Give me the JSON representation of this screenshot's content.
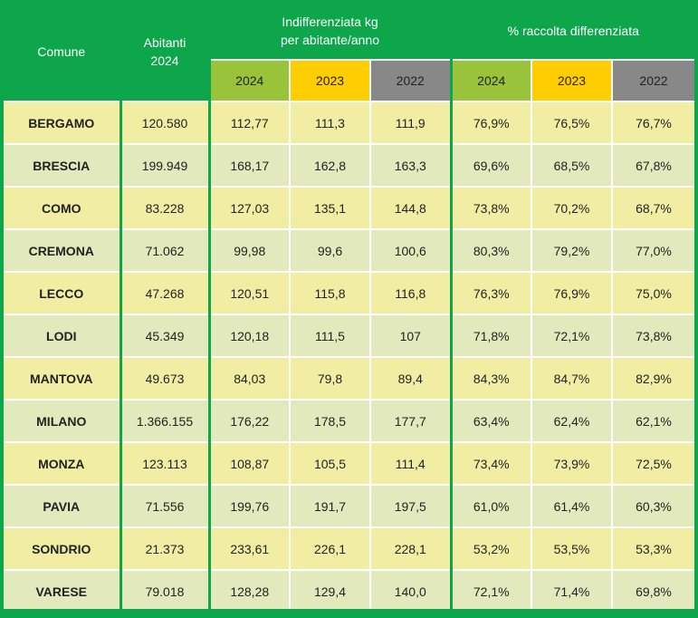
{
  "chart_data": {
    "type": "table",
    "headers": {
      "comune": "Comune",
      "abitanti": "Abitanti 2024",
      "indifferenziata_line1": "Indifferenziata kg",
      "indifferenziata_line2": "per abitante/anno",
      "raccolta": "% raccolta differenziata",
      "years": [
        "2024",
        "2023",
        "2022"
      ]
    },
    "colors": {
      "frame": "#0ea64b",
      "y2024": "#98c33b",
      "y2023": "#ffcd00",
      "y2022": "#888888",
      "row_odd": "#f1eea4",
      "row_even": "#e2e9bc"
    },
    "rows": [
      {
        "comune": "BERGAMO",
        "abitanti": "120.580",
        "ind2024": "112,77",
        "ind2023": "111,3",
        "ind2022": "111,9",
        "rd2024": "76,9%",
        "rd2023": "76,5%",
        "rd2022": "76,7%"
      },
      {
        "comune": "BRESCIA",
        "abitanti": "199.949",
        "ind2024": "168,17",
        "ind2023": "162,8",
        "ind2022": "163,3",
        "rd2024": "69,6%",
        "rd2023": "68,5%",
        "rd2022": "67,8%"
      },
      {
        "comune": "COMO",
        "abitanti": "83.228",
        "ind2024": "127,03",
        "ind2023": "135,1",
        "ind2022": "144,8",
        "rd2024": "73,8%",
        "rd2023": "70,2%",
        "rd2022": "68,7%"
      },
      {
        "comune": "CREMONA",
        "abitanti": "71.062",
        "ind2024": "99,98",
        "ind2023": "99,6",
        "ind2022": "100,6",
        "rd2024": "80,3%",
        "rd2023": "79,2%",
        "rd2022": "77,0%"
      },
      {
        "comune": "LECCO",
        "abitanti": "47.268",
        "ind2024": "120,51",
        "ind2023": "115,8",
        "ind2022": "116,8",
        "rd2024": "76,3%",
        "rd2023": "76,9%",
        "rd2022": "75,0%"
      },
      {
        "comune": "LODI",
        "abitanti": "45.349",
        "ind2024": "120,18",
        "ind2023": "111,5",
        "ind2022": "107",
        "rd2024": "71,8%",
        "rd2023": "72,1%",
        "rd2022": "73,8%"
      },
      {
        "comune": "MANTOVA",
        "abitanti": "49.673",
        "ind2024": "84,03",
        "ind2023": "79,8",
        "ind2022": "89,4",
        "rd2024": "84,3%",
        "rd2023": "84,7%",
        "rd2022": "82,9%"
      },
      {
        "comune": "MILANO",
        "abitanti": "1.366.155",
        "ind2024": "176,22",
        "ind2023": "178,5",
        "ind2022": "177,7",
        "rd2024": "63,4%",
        "rd2023": "62,4%",
        "rd2022": "62,1%"
      },
      {
        "comune": "MONZA",
        "abitanti": "123.113",
        "ind2024": "108,87",
        "ind2023": "105,5",
        "ind2022": "111,4",
        "rd2024": "73,4%",
        "rd2023": "73,9%",
        "rd2022": "72,5%"
      },
      {
        "comune": "PAVIA",
        "abitanti": "71.556",
        "ind2024": "199,76",
        "ind2023": "191,7",
        "ind2022": "197,5",
        "rd2024": "61,0%",
        "rd2023": "61,4%",
        "rd2022": "60,3%"
      },
      {
        "comune": "SONDRIO",
        "abitanti": "21.373",
        "ind2024": "233,61",
        "ind2023": "226,1",
        "ind2022": "228,1",
        "rd2024": "53,2%",
        "rd2023": "53,5%",
        "rd2022": "53,3%"
      },
      {
        "comune": "VARESE",
        "abitanti": "79.018",
        "ind2024": "128,28",
        "ind2023": "129,4",
        "ind2022": "140,0",
        "rd2024": "72,1%",
        "rd2023": "71,4%",
        "rd2022": "69,8%"
      }
    ]
  }
}
